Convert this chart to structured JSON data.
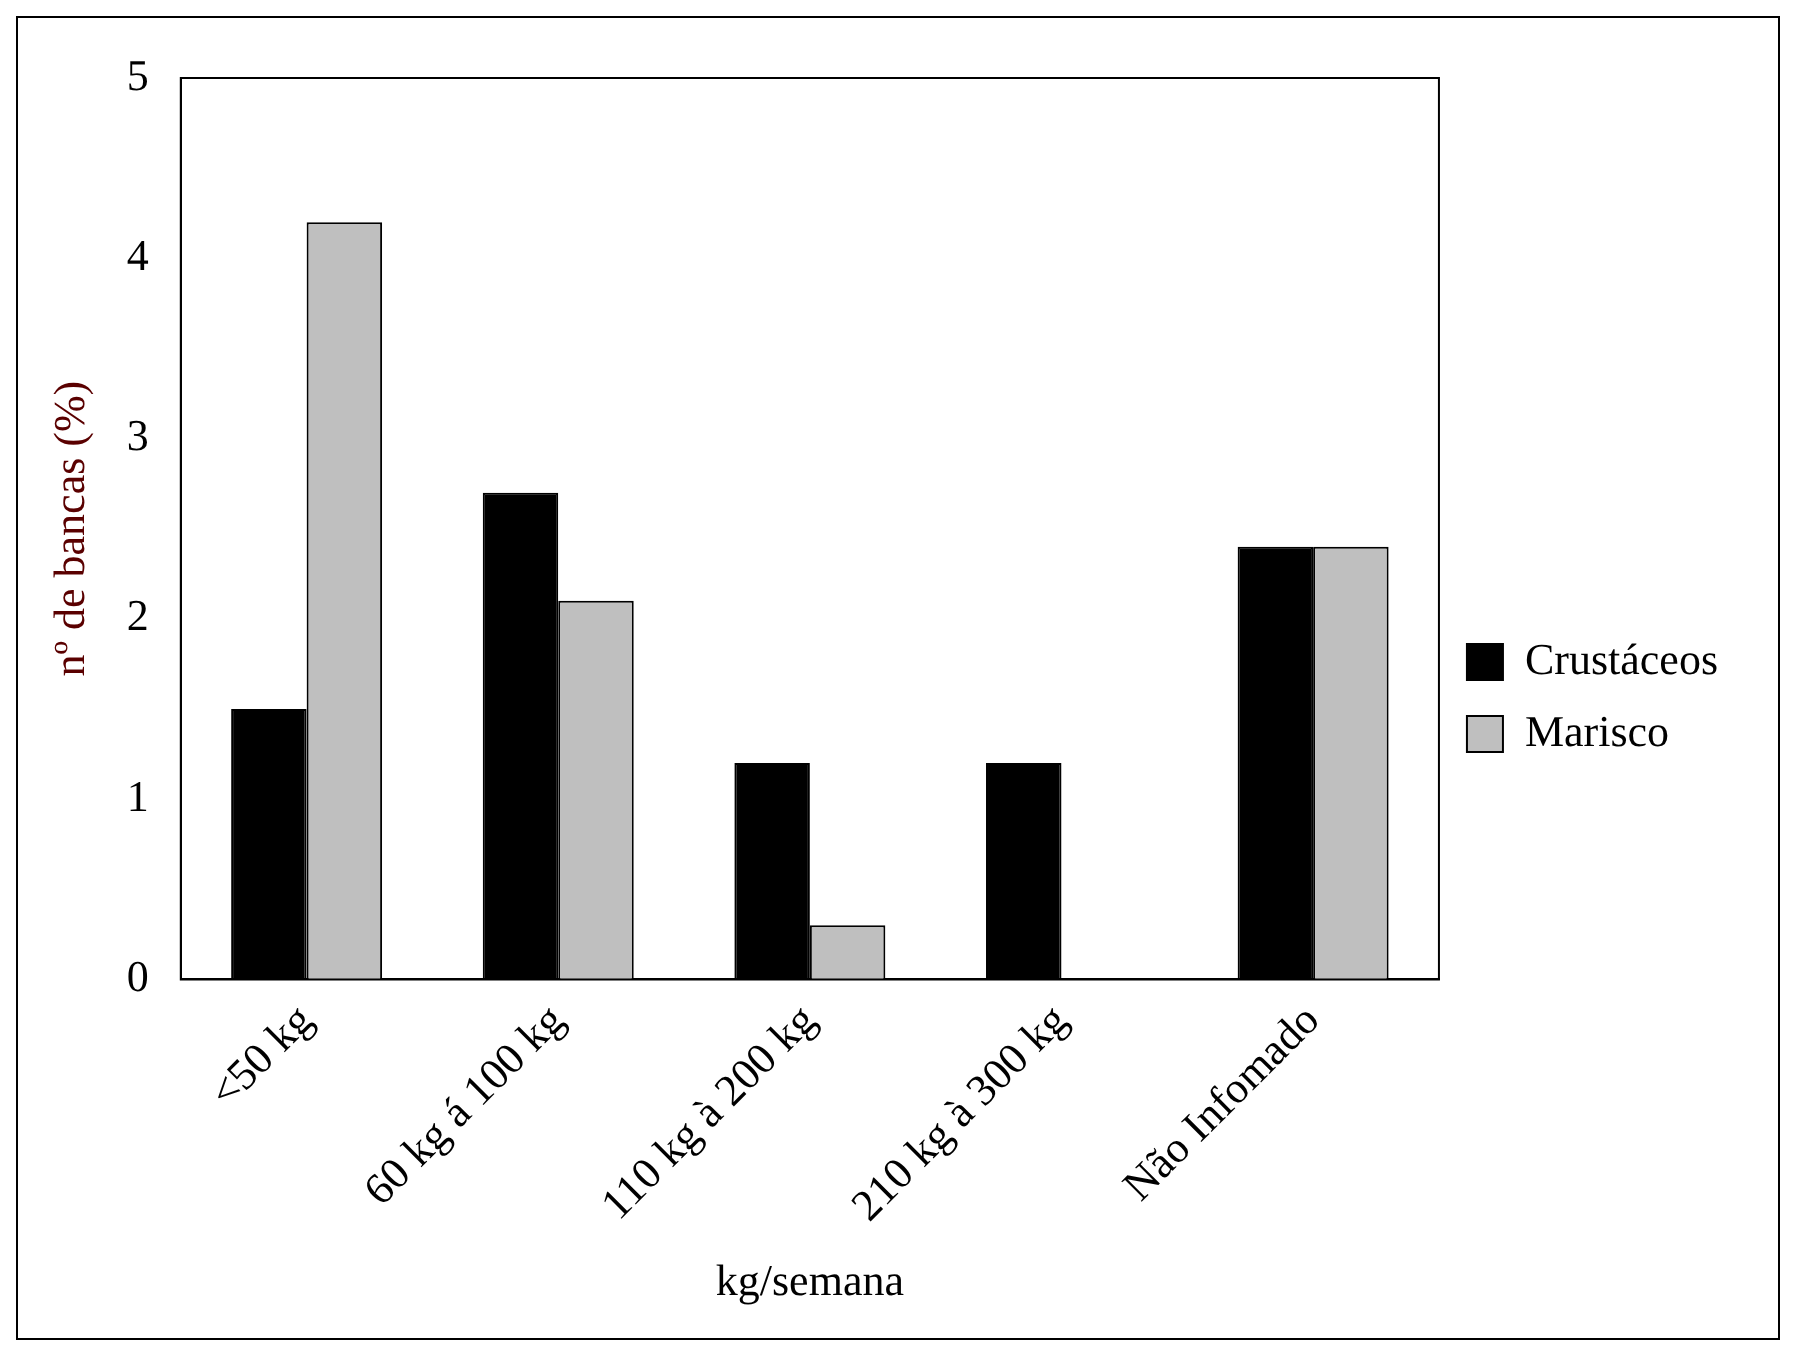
{
  "chart_data": {
    "type": "bar",
    "xlabel": "kg/semana",
    "ylabel": "nº de bancas (%)",
    "categories": [
      "<50 kg",
      "60 kg á 100 kg",
      "110 kg à 200 kg",
      "210 kg à 300 kg",
      "Não Infomado"
    ],
    "series": [
      {
        "name": "Crustáceos",
        "color": "#000000",
        "values": [
          1.5,
          2.7,
          1.2,
          1.2,
          2.4
        ]
      },
      {
        "name": "Marisco",
        "color": "#bfbfbf",
        "values": [
          4.2,
          2.1,
          0.3,
          0,
          2.4
        ]
      }
    ],
    "ylim": [
      0,
      5
    ],
    "yticks": [
      0,
      1,
      2,
      3,
      4,
      5
    ],
    "grid": false,
    "legend": "right"
  }
}
